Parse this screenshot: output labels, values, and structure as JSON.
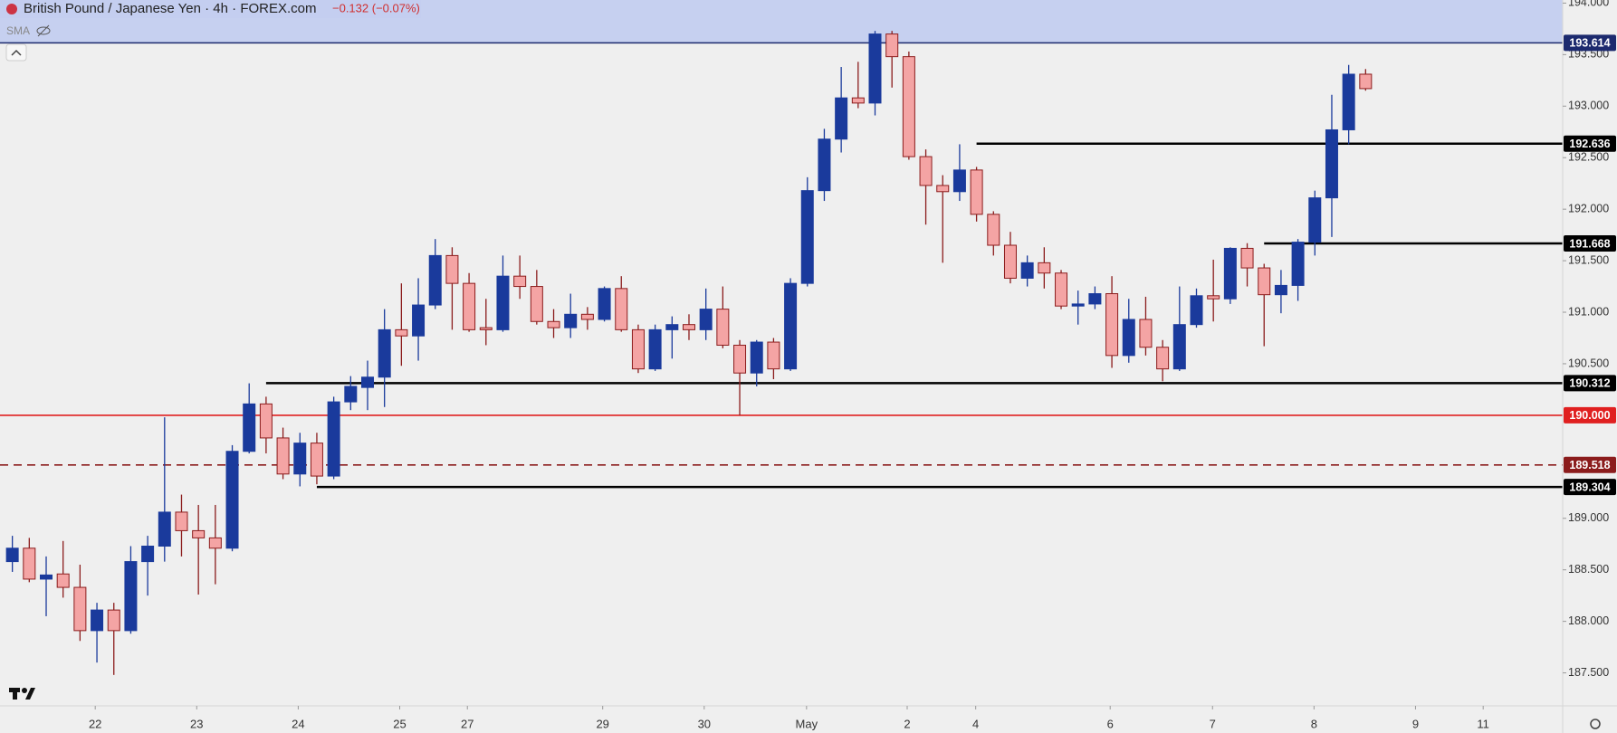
{
  "chart_data": {
    "type": "candlestick",
    "title": "British Pound / Japanese Yen · 4h · FOREX.com",
    "change": "−0.132 (−0.07%)",
    "indicator": "SMA",
    "up_color": "#1a3a9c",
    "down_color": "#f4a4a4",
    "down_edge": "#8b1c1c",
    "x": [
      0,
      1,
      2,
      3,
      4,
      5,
      6,
      7,
      8,
      9,
      10,
      11,
      12,
      13,
      14,
      15,
      16,
      17,
      18,
      19,
      20,
      21,
      22,
      23,
      24,
      25,
      26,
      27,
      28,
      29,
      30,
      31,
      32,
      33,
      34,
      35,
      36,
      37,
      38,
      39,
      40,
      41,
      42,
      43,
      44,
      45,
      46,
      47,
      48,
      49,
      50,
      51,
      52,
      53,
      54,
      55,
      56,
      57,
      58,
      59,
      60,
      61,
      62,
      63,
      64,
      65,
      66,
      67,
      68,
      69,
      70,
      71,
      72,
      73,
      74,
      75,
      76,
      77,
      78,
      79,
      80
    ],
    "open": [
      188.58,
      188.71,
      188.41,
      188.46,
      188.33,
      187.91,
      188.11,
      187.91,
      188.58,
      188.73,
      189.06,
      188.88,
      188.81,
      188.71,
      189.65,
      190.11,
      189.78,
      189.43,
      189.73,
      189.41,
      190.13,
      190.27,
      190.37,
      190.83,
      190.77,
      191.07,
      191.55,
      191.28,
      190.85,
      190.83,
      191.35,
      191.25,
      190.91,
      190.85,
      190.98,
      190.93,
      191.23,
      190.83,
      190.45,
      190.83,
      190.88,
      190.83,
      191.03,
      190.68,
      190.41,
      190.71,
      190.45,
      191.28,
      192.18,
      192.68,
      193.08,
      193.03,
      193.7,
      193.48,
      192.51,
      192.23,
      192.17,
      192.38,
      191.95,
      191.65,
      191.33,
      191.48,
      191.38,
      191.06,
      191.08,
      191.18,
      190.58,
      190.93,
      190.66,
      190.45,
      190.88,
      191.16,
      191.13,
      191.62,
      191.43,
      191.17,
      191.26,
      191.68,
      192.11,
      192.77,
      193.31
    ],
    "high": [
      188.83,
      188.81,
      188.63,
      188.78,
      188.55,
      188.18,
      188.18,
      188.73,
      188.83,
      189.98,
      189.23,
      189.13,
      189.13,
      189.71,
      190.31,
      190.18,
      189.88,
      189.83,
      189.83,
      190.18,
      190.38,
      190.53,
      191.03,
      191.28,
      191.33,
      191.71,
      191.63,
      191.38,
      191.13,
      191.55,
      191.55,
      191.41,
      191.03,
      191.18,
      191.05,
      191.25,
      191.35,
      190.88,
      190.88,
      190.96,
      190.98,
      191.23,
      191.25,
      190.73,
      190.73,
      190.75,
      191.33,
      192.31,
      192.78,
      193.38,
      193.43,
      193.73,
      193.73,
      193.53,
      192.58,
      192.33,
      192.63,
      192.41,
      191.98,
      191.78,
      191.55,
      191.63,
      191.41,
      191.21,
      191.25,
      191.35,
      191.13,
      191.15,
      190.73,
      191.25,
      191.23,
      191.51,
      191.63,
      191.67,
      191.47,
      191.41,
      191.71,
      192.18,
      193.11,
      193.4,
      193.36
    ],
    "low": [
      188.48,
      188.38,
      188.05,
      188.23,
      187.81,
      187.6,
      187.48,
      187.88,
      188.25,
      188.58,
      188.63,
      188.26,
      188.36,
      188.68,
      189.63,
      189.63,
      189.38,
      189.31,
      189.33,
      189.38,
      190.05,
      190.05,
      190.08,
      190.48,
      190.53,
      191.03,
      190.83,
      190.81,
      190.68,
      190.81,
      191.13,
      190.88,
      190.75,
      190.75,
      190.83,
      190.91,
      190.81,
      190.41,
      190.43,
      190.55,
      190.73,
      190.73,
      190.65,
      190.0,
      190.28,
      190.35,
      190.43,
      191.25,
      192.08,
      192.55,
      192.98,
      192.91,
      193.18,
      192.48,
      191.85,
      191.48,
      192.08,
      191.88,
      191.55,
      191.28,
      191.25,
      191.23,
      191.03,
      190.88,
      191.03,
      190.46,
      190.51,
      190.58,
      190.33,
      190.43,
      190.85,
      190.91,
      191.08,
      191.25,
      190.67,
      190.99,
      191.11,
      191.55,
      191.73,
      192.63,
      193.15
    ],
    "close": [
      188.71,
      188.41,
      188.45,
      188.33,
      187.91,
      188.11,
      187.91,
      188.58,
      188.73,
      189.06,
      188.88,
      188.81,
      188.71,
      189.65,
      190.11,
      189.78,
      189.43,
      189.73,
      189.41,
      190.13,
      190.28,
      190.37,
      190.83,
      190.77,
      191.07,
      191.55,
      191.28,
      190.83,
      190.83,
      191.35,
      191.25,
      190.91,
      190.85,
      190.98,
      190.93,
      191.23,
      190.83,
      190.45,
      190.83,
      190.88,
      190.83,
      191.03,
      190.68,
      190.41,
      190.71,
      190.45,
      191.28,
      192.18,
      192.68,
      193.08,
      193.03,
      193.7,
      193.48,
      192.51,
      192.23,
      192.17,
      192.38,
      191.95,
      191.65,
      191.33,
      191.48,
      191.38,
      191.06,
      191.08,
      191.18,
      190.58,
      190.93,
      190.66,
      190.45,
      190.88,
      191.16,
      191.13,
      191.62,
      191.43,
      191.17,
      191.26,
      191.68,
      192.11,
      192.77,
      193.31,
      193.17
    ],
    "xlim": [
      -0.73,
      91.65
    ],
    "ylim": [
      187.18,
      194.03
    ],
    "xticks": [
      {
        "value": 4.9,
        "label": "22"
      },
      {
        "value": 10.9,
        "label": "23"
      },
      {
        "value": 16.9,
        "label": "24"
      },
      {
        "value": 22.9,
        "label": "25"
      },
      {
        "value": 26.9,
        "label": "27"
      },
      {
        "value": 34.9,
        "label": "29"
      },
      {
        "value": 40.9,
        "label": "30"
      },
      {
        "value": 46.95,
        "label": "May"
      },
      {
        "value": 52.9,
        "label": "2"
      },
      {
        "value": 56.95,
        "label": "4"
      },
      {
        "value": 64.9,
        "label": "6"
      },
      {
        "value": 70.95,
        "label": "7"
      },
      {
        "value": 76.95,
        "label": "8"
      },
      {
        "value": 82.95,
        "label": "9"
      },
      {
        "value": 86.95,
        "label": "11"
      }
    ],
    "yticks": [
      {
        "value": 194,
        "label": "194.000"
      },
      {
        "value": 193.5,
        "label": "193.500"
      },
      {
        "value": 193,
        "label": "193.000"
      },
      {
        "value": 192.5,
        "label": "192.500"
      },
      {
        "value": 192,
        "label": "192.000"
      },
      {
        "value": 191.5,
        "label": "191.500"
      },
      {
        "value": 191,
        "label": "191.000"
      },
      {
        "value": 190.5,
        "label": "190.500"
      },
      {
        "value": 189,
        "label": "189.000"
      },
      {
        "value": 188.5,
        "label": "188.500"
      },
      {
        "value": 188,
        "label": "188.000"
      },
      {
        "value": 187.5,
        "label": "187.500"
      }
    ],
    "levels": [
      {
        "value": 193.614,
        "color": "#1c2a6e",
        "zone": "#c3cdef"
      },
      {
        "value": 192.636,
        "color": "#000000",
        "from": 57
      },
      {
        "value": 191.668,
        "color": "#000000",
        "from": 74
      },
      {
        "value": 190.312,
        "color": "#000000",
        "from": 15
      },
      {
        "value": 190,
        "label": "190.000",
        "color": "#e02020"
      },
      {
        "value": 189.518,
        "color": "#8b1c1c",
        "style": "dashed"
      },
      {
        "value": 189.304,
        "color": "#000000",
        "from": 18
      }
    ]
  }
}
